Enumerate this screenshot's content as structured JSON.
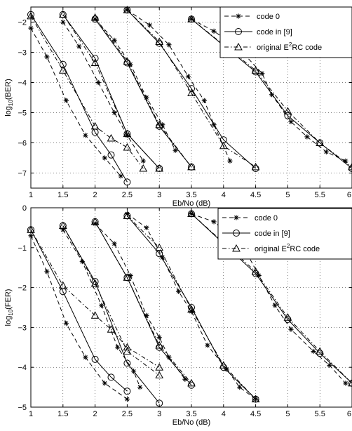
{
  "chart_data": [
    {
      "type": "line",
      "xlabel": "Eb/No (dB)",
      "ylabel": {
        "base": "log",
        "sub": "10",
        "rest": "(BER)"
      },
      "xlim": [
        1,
        6
      ],
      "ylim": [
        -7.5,
        -1.5
      ],
      "xticks": [
        1,
        1.5,
        2,
        2.5,
        3,
        3.5,
        4,
        4.5,
        5,
        5.5,
        6
      ],
      "xtick_labels": [
        "1",
        "1.5",
        "2",
        "2.5",
        "3",
        "3.5",
        "4",
        "4.5",
        "5",
        "5.5",
        "6"
      ],
      "yticks": [
        -2,
        -3,
        -4,
        -5,
        -6,
        -7
      ],
      "ytick_labels": [
        "−2",
        "−3",
        "−4",
        "−5",
        "−6",
        "−7"
      ],
      "grid": true,
      "legend": {
        "placement": "top-right",
        "entries": [
          {
            "pre": "code 0",
            "sup": "",
            "post": ""
          },
          {
            "pre": "code in [9]",
            "sup": "",
            "post": ""
          },
          {
            "pre": "original E",
            "sup": "2",
            "post": "RC code"
          }
        ]
      },
      "series": [
        {
          "marker": "star",
          "dash": "dashed",
          "curves": [
            [
              [
                1,
                -2.2
              ],
              [
                1.25,
                -3.15
              ],
              [
                1.55,
                -4.6
              ],
              [
                1.85,
                -5.75
              ],
              [
                2.15,
                -6.5
              ],
              [
                2.4,
                -7.1
              ]
            ],
            [
              [
                1.5,
                -2.0
              ],
              [
                1.75,
                -2.8
              ],
              [
                2.05,
                -4.0
              ],
              [
                2.3,
                -5.0
              ],
              [
                2.5,
                -5.75
              ],
              [
                2.75,
                -6.6
              ]
            ],
            [
              [
                2.0,
                -1.9
              ],
              [
                2.3,
                -2.6
              ],
              [
                2.55,
                -3.4
              ],
              [
                2.8,
                -4.5
              ],
              [
                3.05,
                -5.4
              ],
              [
                3.25,
                -6.25
              ]
            ],
            [
              [
                2.5,
                -1.6
              ],
              [
                2.85,
                -2.1
              ],
              [
                3.15,
                -2.75
              ],
              [
                3.45,
                -3.8
              ],
              [
                3.7,
                -4.6
              ],
              [
                3.85,
                -5.4
              ],
              [
                4.1,
                -6.6
              ]
            ],
            [
              [
                3.5,
                -1.9
              ],
              [
                3.85,
                -2.3
              ],
              [
                4.25,
                -2.9
              ],
              [
                4.6,
                -3.7
              ],
              [
                4.75,
                -4.4
              ],
              [
                5.05,
                -5.3
              ],
              [
                5.3,
                -5.8
              ],
              [
                5.6,
                -6.3
              ],
              [
                5.9,
                -6.6
              ]
            ]
          ]
        },
        {
          "marker": "circle",
          "dash": "solid",
          "curves": [
            [
              [
                1,
                -1.75
              ],
              [
                1.5,
                -3.4
              ],
              [
                2,
                -5.65
              ],
              [
                2.25,
                -6.4
              ],
              [
                2.5,
                -7.3
              ]
            ],
            [
              [
                1.5,
                -1.75
              ],
              [
                2,
                -3.2
              ],
              [
                2.5,
                -5.7
              ],
              [
                3,
                -6.85
              ]
            ],
            [
              [
                2,
                -1.9
              ],
              [
                2.5,
                -3.35
              ],
              [
                3,
                -5.45
              ],
              [
                3.5,
                -6.8
              ]
            ],
            [
              [
                2.5,
                -1.6
              ],
              [
                3,
                -2.7
              ],
              [
                3.5,
                -4.2
              ],
              [
                4,
                -5.9
              ],
              [
                4.5,
                -6.85
              ]
            ],
            [
              [
                3.5,
                -1.9
              ],
              [
                4.5,
                -3.65
              ],
              [
                5,
                -5.1
              ],
              [
                5.5,
                -6.0
              ],
              [
                6,
                -6.85
              ]
            ]
          ]
        },
        {
          "marker": "triangle",
          "dash": "dashdot",
          "curves": [
            [
              [
                1,
                -1.8
              ],
              [
                1.5,
                -3.6
              ],
              [
                2,
                -5.45
              ],
              [
                2.25,
                -5.85
              ],
              [
                2.5,
                -6.15
              ],
              [
                2.75,
                -6.85
              ]
            ],
            [
              [
                1.5,
                -1.75
              ],
              [
                2,
                -3.35
              ],
              [
                2.5,
                -5.7
              ],
              [
                3,
                -6.85
              ]
            ],
            [
              [
                2,
                -1.85
              ],
              [
                2.5,
                -3.3
              ],
              [
                3,
                -5.4
              ],
              [
                3.5,
                -6.8
              ]
            ],
            [
              [
                2.5,
                -1.6
              ],
              [
                3,
                -2.65
              ],
              [
                3.5,
                -4.35
              ],
              [
                4,
                -6.1
              ],
              [
                4.5,
                -6.8
              ]
            ],
            [
              [
                3.5,
                -1.9
              ],
              [
                4.5,
                -3.6
              ],
              [
                5,
                -4.95
              ],
              [
                5.5,
                -6.0
              ],
              [
                6,
                -6.8
              ]
            ]
          ]
        }
      ]
    },
    {
      "type": "line",
      "xlabel": "Eb/No (dB)",
      "ylabel": {
        "base": "log",
        "sub": "10",
        "rest": "(FER)"
      },
      "xlim": [
        1,
        6
      ],
      "ylim": [
        -5,
        0
      ],
      "xticks": [
        1,
        1.5,
        2,
        2.5,
        3,
        3.5,
        4,
        4.5,
        5,
        5.5,
        6
      ],
      "xtick_labels": [
        "1",
        "1.5",
        "2",
        "2.5",
        "3",
        "3.5",
        "4",
        "4.5",
        "5",
        "5.5",
        "6"
      ],
      "yticks": [
        0,
        -1,
        -2,
        -3,
        -4,
        -5
      ],
      "ytick_labels": [
        "0",
        "−1",
        "−2",
        "−3",
        "−4",
        "−5"
      ],
      "grid": true,
      "legend": {
        "placement": "top-right",
        "entries": [
          {
            "pre": "code 0",
            "sup": "",
            "post": ""
          },
          {
            "pre": "code in [9]",
            "sup": "",
            "post": ""
          },
          {
            "pre": "original E",
            "sup": "2",
            "post": "RC code"
          }
        ]
      },
      "series": [
        {
          "marker": "star",
          "dash": "dashed",
          "curves": [
            [
              [
                1,
                -0.7
              ],
              [
                1.25,
                -1.6
              ],
              [
                1.55,
                -2.9
              ],
              [
                1.85,
                -3.75
              ],
              [
                2.15,
                -4.4
              ],
              [
                2.5,
                -4.8
              ]
            ],
            [
              [
                1.5,
                -0.55
              ],
              [
                1.8,
                -1.35
              ],
              [
                2.1,
                -2.45
              ],
              [
                2.35,
                -3.5
              ],
              [
                2.6,
                -4.1
              ],
              [
                2.7,
                -4.5
              ]
            ],
            [
              [
                2.0,
                -0.4
              ],
              [
                2.3,
                -0.9
              ],
              [
                2.55,
                -1.7
              ],
              [
                2.8,
                -2.7
              ],
              [
                3.0,
                -3.25
              ],
              [
                3.15,
                -3.75
              ],
              [
                3.4,
                -4.3
              ]
            ],
            [
              [
                2.5,
                -0.15
              ],
              [
                2.8,
                -0.5
              ],
              [
                3.05,
                -1.25
              ],
              [
                3.3,
                -2.1
              ],
              [
                3.5,
                -2.6
              ],
              [
                3.75,
                -3.45
              ],
              [
                4.05,
                -4.05
              ],
              [
                4.25,
                -4.5
              ],
              [
                4.5,
                -4.8
              ]
            ],
            [
              [
                3.5,
                -0.15
              ],
              [
                3.85,
                -0.35
              ],
              [
                4.3,
                -0.95
              ],
              [
                4.55,
                -1.7
              ],
              [
                4.8,
                -2.45
              ],
              [
                5.05,
                -3.05
              ],
              [
                5.4,
                -3.6
              ],
              [
                5.65,
                -3.95
              ],
              [
                5.9,
                -4.4
              ]
            ]
          ]
        },
        {
          "marker": "circle",
          "dash": "solid",
          "curves": [
            [
              [
                1,
                -0.55
              ],
              [
                1.5,
                -2.1
              ],
              [
                2,
                -3.8
              ],
              [
                2.25,
                -4.25
              ],
              [
                2.5,
                -4.6
              ]
            ],
            [
              [
                1.5,
                -0.45
              ],
              [
                2,
                -1.85
              ],
              [
                2.5,
                -3.9
              ],
              [
                3,
                -4.9
              ]
            ],
            [
              [
                2,
                -0.35
              ],
              [
                2.5,
                -1.75
              ],
              [
                3,
                -3.5
              ],
              [
                3.5,
                -4.45
              ]
            ],
            [
              [
                2.5,
                -0.2
              ],
              [
                3,
                -1.15
              ],
              [
                3.5,
                -2.5
              ],
              [
                4,
                -4.0
              ],
              [
                4.5,
                -4.8
              ]
            ],
            [
              [
                3.5,
                -0.15
              ],
              [
                4.5,
                -1.65
              ],
              [
                5,
                -2.8
              ],
              [
                5.5,
                -3.65
              ],
              [
                6,
                -4.4
              ]
            ]
          ]
        },
        {
          "marker": "triangle",
          "dash": "dashdot",
          "curves": [
            [
              [
                1,
                -0.55
              ],
              [
                1.5,
                -1.95
              ],
              [
                2,
                -2.7
              ],
              [
                2.25,
                -3.05
              ],
              [
                2.5,
                -3.5
              ],
              [
                3,
                -4.0
              ]
            ],
            [
              [
                1.5,
                -0.45
              ],
              [
                2,
                -1.9
              ],
              [
                2.5,
                -3.6
              ],
              [
                3,
                -4.2
              ]
            ],
            [
              [
                2,
                -0.35
              ],
              [
                2.5,
                -1.75
              ],
              [
                3,
                -3.45
              ],
              [
                3.5,
                -4.4
              ]
            ],
            [
              [
                2.5,
                -0.2
              ],
              [
                3,
                -1.0
              ],
              [
                3.5,
                -2.55
              ],
              [
                4,
                -3.95
              ],
              [
                4.5,
                -4.8
              ]
            ],
            [
              [
                3.5,
                -0.15
              ],
              [
                4.5,
                -1.6
              ],
              [
                5,
                -2.75
              ],
              [
                5.5,
                -3.6
              ],
              [
                6,
                -4.4
              ]
            ]
          ]
        }
      ]
    }
  ]
}
